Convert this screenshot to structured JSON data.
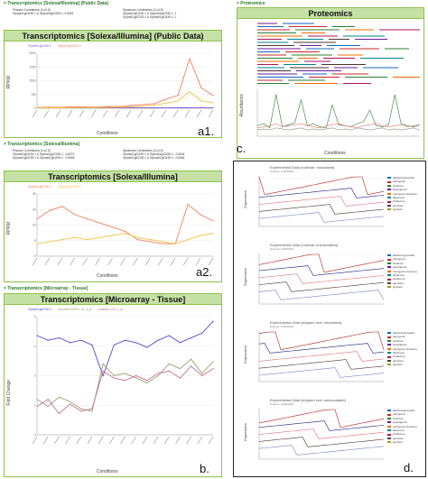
{
  "panel_a1": {
    "section_header": "> Transcriptomics [Solexa/Illumina] (Public Data)",
    "corr_left": [
      "Pearson Correlations (0 ≥0.5)",
      "Glyma01g01190.1 & Glyma01g02230.1: 0.5343"
    ],
    "corr_right": [
      "Spearman Correlations (0 ≥0.5)",
      "Glyma01g01190.1 & Glyma01g02230.1: 1",
      "Glyma01g02230.1 & Glyma01g01190.1: 1"
    ],
    "title": "Transcriptomics [Solexa/Illumina] (Public Data)",
    "legend": [
      "Glyma01g01190.1",
      "Glyma01g02230.1"
    ],
    "ylabel": "RPKM",
    "xlabel": "Conditions",
    "letter": "a1."
  },
  "panel_a2": {
    "section_header": "> Transcriptomics [Solexa/Illumina]",
    "corr_left": [
      "Pearson Correlations (0 ≥0.5)",
      "Glyma01g01190.1 & Glyma01g02230.1: -0.6270",
      "Glyma01g02230.1 & Glyma01g01190.1: -0.5348"
    ],
    "corr_right": [
      "Spearman Correlations (0 ≥0.5)",
      "Glyma01g01190.1 & Glyma01g02230.1: -0.6004",
      "Glyma01g02230.1 & Glyma01g01190.1: -0.5454"
    ],
    "title": "Transcriptomics [Solexa/Illumina]",
    "legend": [
      "Glyma01g01190.1",
      "Glyma01g02230.1"
    ],
    "ylabel": "RPKM",
    "xlabel": "Conditions",
    "letter": "a2."
  },
  "panel_b": {
    "section_header": "> Transcriptomics [Microarray - Tissue]",
    "title": "Transcriptomics [Microarray - Tissue]",
    "legend": [
      "Glyma01g02230.1",
      "GmaAffx.22006.1.S1_a_at",
      "GmaAffx.1.S1_x_at"
    ],
    "ylabel": "Fold Change",
    "xlabel": "Conditions",
    "letter": "b."
  },
  "panel_c": {
    "section_header": "> Proteomics",
    "title": "Proteomics",
    "ylabel": "Abundance",
    "xlabel": "Conditions",
    "letter": "c."
  },
  "panel_d": {
    "letter": "d.",
    "ylabel": "Expression",
    "subcharts": [
      {
        "title": "Experimental Data (rootHair: inoculated)",
        "sub": "Dataset: GSE00001"
      },
      {
        "title": "Experimental Data (roothair: uninoculated)",
        "sub": "Dataset: GSE00001"
      },
      {
        "title": "Experimental Data (stripped root: inoculated)",
        "sub": "Dataset: GSE00001"
      },
      {
        "title": "Experimental Data (stripped root: uninoculated)",
        "sub": "Dataset: GSE00001"
      }
    ],
    "legend": [
      "daidzein/glyceollin",
      "naringenin",
      "chalcone",
      "liquiritigenin",
      "naringenin-chalcone",
      "flavanone",
      "isoflavone",
      "genistein",
      "glycitein"
    ]
  },
  "chart_data": [
    {
      "type": "line",
      "panel": "a1",
      "ylim": [
        0,
        3000
      ],
      "series": [
        {
          "name": "Glyma01g01190.1",
          "color": "#7b5ad6",
          "values": [
            30,
            20,
            30,
            25,
            20,
            25,
            30,
            20,
            25,
            30,
            25,
            20,
            30,
            25,
            40,
            30
          ]
        },
        {
          "name": "Glyma01g02230.1",
          "color": "#f08060",
          "values": [
            40,
            60,
            50,
            80,
            70,
            60,
            100,
            90,
            150,
            200,
            250,
            500,
            700,
            2700,
            1100,
            700
          ]
        },
        {
          "name": "",
          "color": "#f5c040",
          "values": [
            20,
            30,
            25,
            30,
            40,
            35,
            50,
            60,
            80,
            120,
            160,
            280,
            400,
            900,
            400,
            300
          ]
        }
      ]
    },
    {
      "type": "line",
      "panel": "a2",
      "ylim": [
        0,
        30
      ],
      "series": [
        {
          "name": "Glyma01g01190.1",
          "color": "#f08060",
          "values": [
            18,
            22,
            24,
            20,
            18,
            16,
            14,
            12,
            8,
            7,
            6,
            6,
            25,
            20,
            17
          ]
        },
        {
          "name": "Glyma01g02230.1",
          "color": "#f5c040",
          "values": [
            6,
            7,
            8,
            9,
            8,
            9,
            10,
            11,
            9,
            8,
            7,
            6,
            8,
            10,
            11
          ]
        }
      ]
    },
    {
      "type": "line",
      "panel": "b",
      "ylim": [
        0,
        5
      ],
      "series": [
        {
          "name": "Glyma01g02230.1",
          "color": "#4a4ad0",
          "values": [
            4.2,
            4.0,
            4.1,
            3.9,
            4.0,
            3.8,
            2.5,
            3.8,
            4.0,
            3.9,
            3.7,
            4.0,
            4.2,
            3.9,
            4.1,
            4.3,
            4.8
          ]
        },
        {
          "name": "GmaAffx.22006.1.S1_a_at",
          "color": "#a0a070",
          "values": [
            1.5,
            1.2,
            1.6,
            1.4,
            1.1,
            1.0,
            3.0,
            2.5,
            2.6,
            2.4,
            2.2,
            2.5,
            3.0,
            2.8,
            3.2,
            2.6,
            3.1
          ]
        },
        {
          "name": "GmaAffx.1.S1_x_at",
          "color": "#c07090",
          "values": [
            1.2,
            1.5,
            0.9,
            1.3,
            1.0,
            1.1,
            2.7,
            2.4,
            2.3,
            2.5,
            2.3,
            2.6,
            2.7,
            2.4,
            2.9,
            2.5,
            2.8
          ]
        }
      ]
    },
    {
      "type": "line",
      "panel": "c",
      "series": [
        {
          "name": "",
          "color": "#2e7d32",
          "values": [
            10,
            12,
            8,
            40,
            9,
            11,
            13,
            35,
            10,
            12,
            9,
            8,
            30,
            11,
            10,
            9,
            12,
            14,
            25,
            10,
            9,
            11,
            40,
            12,
            10,
            9,
            11
          ]
        },
        {
          "name": "",
          "color": "#e57373",
          "values": [
            8,
            9,
            10,
            12,
            9,
            10,
            11,
            12,
            10,
            9,
            8,
            10,
            11,
            12,
            10,
            9,
            8,
            10,
            11,
            12,
            10,
            9,
            10,
            11,
            9,
            10,
            11
          ]
        },
        {
          "name": "",
          "color": "#a1887f",
          "values": [
            6,
            7,
            6,
            8,
            7,
            6,
            7,
            8,
            6,
            7,
            6,
            7,
            8,
            6,
            7,
            6,
            8,
            7,
            6,
            7,
            8,
            6,
            7,
            6,
            7,
            8,
            6
          ]
        }
      ]
    }
  ]
}
